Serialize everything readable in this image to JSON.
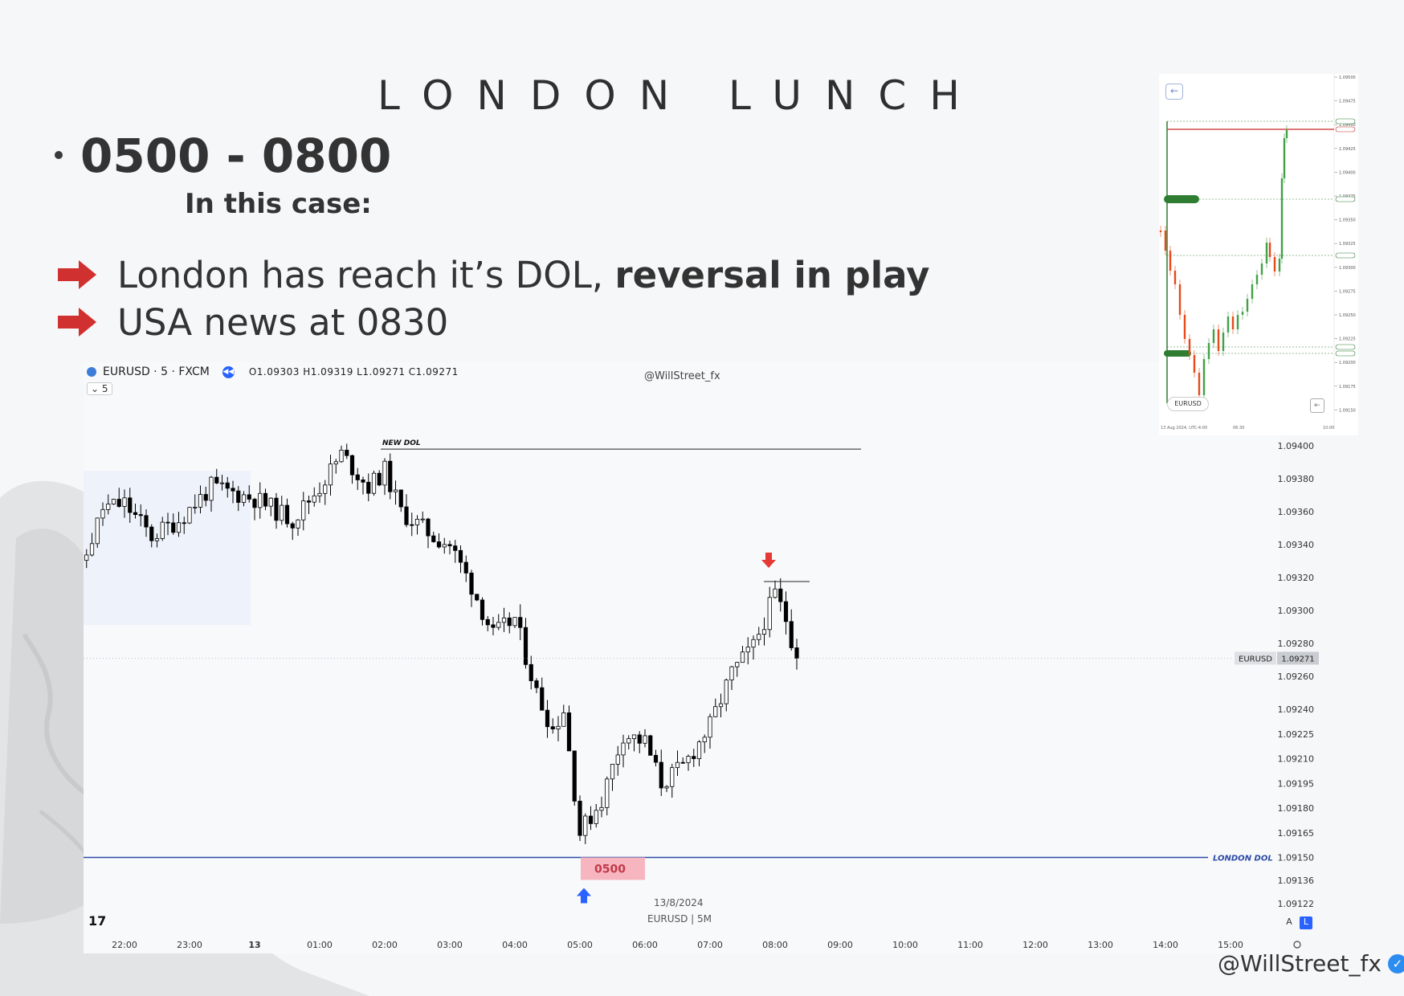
{
  "slide": {
    "title": "LONDON LUNCH",
    "time_range": "0500 - 0800",
    "subheading": "In this case:",
    "points": [
      {
        "text": "London has reach it’s DOL, ",
        "bold": "reversal in play"
      },
      {
        "text": "USA news at 0830",
        "bold": ""
      }
    ],
    "handle": "@WillStreet_fx",
    "colors": {
      "arrow": "#d0302f",
      "verified": "#2d8cf0",
      "text": "#333333"
    }
  },
  "chart": {
    "symbol": "EURUSD · 5 · FXCM",
    "ohlc": "O1.09303 H1.09319 L1.09271 C1.09271",
    "interval_badge": "5",
    "watermark": "@WillStreet_fx",
    "footer_date": "13/8/2024",
    "footer_symbol": "EURUSD | 5M",
    "logo": "17",
    "scale_buttons": [
      "A",
      "L"
    ],
    "new_dol_label": "NEW DOL",
    "london_dol_label": "LONDON DOL",
    "session_box_label": "0500",
    "last_price_symbol": "EURUSD",
    "last_price": "1.09271",
    "colors": {
      "london_dol_line": "#2b4aa6",
      "session_box": "#f7b6bf",
      "session_text": "#c0394b",
      "sell_arrow": "#e53935",
      "buy_arrow": "#2962ff",
      "candle": "#000000",
      "range_box": "#eef3fb"
    }
  },
  "chart_data": {
    "type": "candlestick",
    "title": "",
    "ylim": [
      1.0911,
      1.0941
    ],
    "y_ticks": [
      "1.09400",
      "1.09380",
      "1.09360",
      "1.09340",
      "1.09320",
      "1.09300",
      "1.09280",
      "1.09260",
      "1.09240",
      "1.09225",
      "1.09210",
      "1.09195",
      "1.09180",
      "1.09165",
      "1.09150",
      "1.09136",
      "1.09122"
    ],
    "x_ticks": [
      "22:00",
      "23:00",
      "13",
      "01:00",
      "02:00",
      "03:00",
      "04:00",
      "05:00",
      "06:00",
      "07:00",
      "08:00",
      "09:00",
      "10:00",
      "11:00",
      "12:00",
      "13:00",
      "14:00",
      "15:00"
    ],
    "levels": {
      "new_dol": 1.09398,
      "london_dol": 1.0915,
      "last_price": 1.09271,
      "sell_marker_high": 1.09319
    },
    "close_path": [
      {
        "t": "21:00",
        "c": 1.093
      },
      {
        "t": "21:20",
        "c": 1.09325
      },
      {
        "t": "21:40",
        "c": 1.09362
      },
      {
        "t": "22:00",
        "c": 1.09365
      },
      {
        "t": "22:25",
        "c": 1.09345
      },
      {
        "t": "22:50",
        "c": 1.09355
      },
      {
        "t": "23:20",
        "c": 1.09375
      },
      {
        "t": "00:00",
        "c": 1.09368
      },
      {
        "t": "00:35",
        "c": 1.09355
      },
      {
        "t": "01:00",
        "c": 1.09375
      },
      {
        "t": "01:20",
        "c": 1.09395
      },
      {
        "t": "01:45",
        "c": 1.09375
      },
      {
        "t": "02:00",
        "c": 1.09385
      },
      {
        "t": "02:15",
        "c": 1.0936
      },
      {
        "t": "02:45",
        "c": 1.09345
      },
      {
        "t": "03:00",
        "c": 1.0934
      },
      {
        "t": "03:20",
        "c": 1.09315
      },
      {
        "t": "03:40",
        "c": 1.09285
      },
      {
        "t": "04:00",
        "c": 1.09295
      },
      {
        "t": "04:20",
        "c": 1.0925
      },
      {
        "t": "04:35",
        "c": 1.09228
      },
      {
        "t": "04:45",
        "c": 1.0924
      },
      {
        "t": "05:00",
        "c": 1.09165
      },
      {
        "t": "05:20",
        "c": 1.09185
      },
      {
        "t": "05:40",
        "c": 1.09225
      },
      {
        "t": "06:00",
        "c": 1.0922
      },
      {
        "t": "06:15",
        "c": 1.09195
      },
      {
        "t": "06:35",
        "c": 1.09205
      },
      {
        "t": "07:00",
        "c": 1.0923
      },
      {
        "t": "07:20",
        "c": 1.09262
      },
      {
        "t": "07:40",
        "c": 1.09278
      },
      {
        "t": "08:00",
        "c": 1.0931
      },
      {
        "t": "08:10",
        "c": 1.09295
      },
      {
        "t": "08:20",
        "c": 1.09271
      }
    ]
  },
  "inset": {
    "symbol": "EURUSD",
    "price_labels": [
      "1.09500",
      "1.09475",
      "1.09450",
      "1.09425",
      "1.09400",
      "1.09375",
      "1.09350",
      "1.09325",
      "1.09300",
      "1.09275",
      "1.09250",
      "1.09225",
      "1.09200",
      "1.09175",
      "1.09150"
    ],
    "footer": [
      "13 Aug 2024, UTC-4:00",
      "06:30",
      "10:00"
    ]
  }
}
